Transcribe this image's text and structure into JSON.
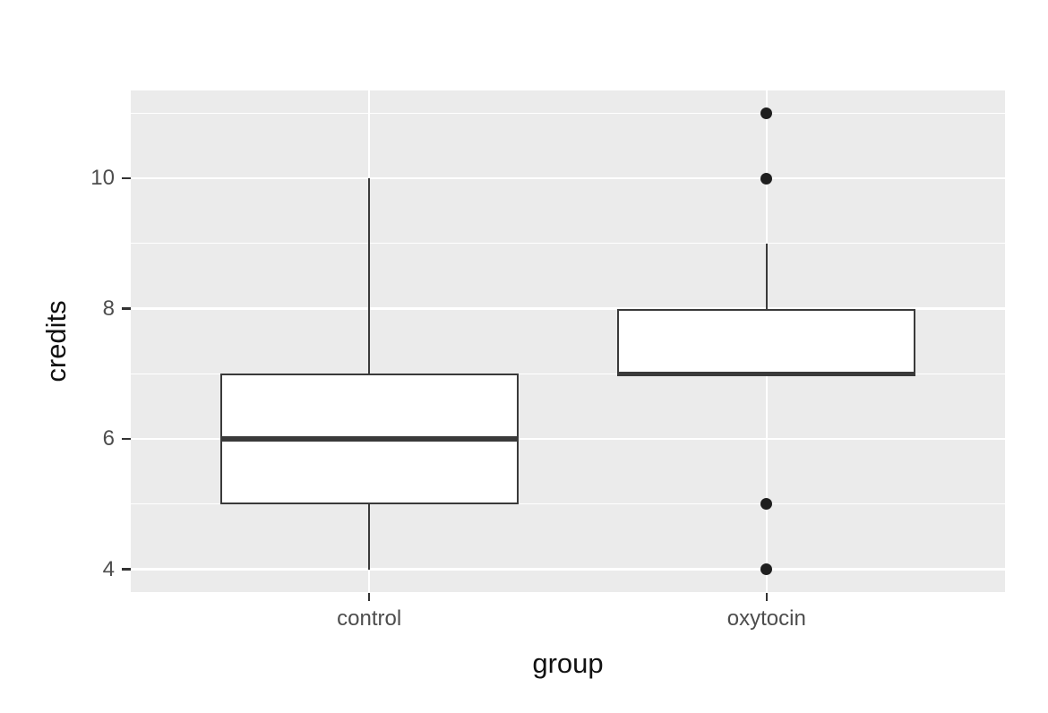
{
  "chart_data": {
    "type": "boxplot",
    "title": "",
    "xlabel": "group",
    "ylabel": "credits",
    "categories": [
      "control",
      "oxytocin"
    ],
    "y_major_ticks": [
      4,
      6,
      8,
      10
    ],
    "y_minor_gridlines": [
      5,
      7,
      9,
      11
    ],
    "ylim": [
      3.65,
      11.35
    ],
    "grid": "on",
    "legend": "none",
    "series": [
      {
        "name": "control",
        "whisker_low": 4,
        "q1": 5,
        "median": 6,
        "q3": 7,
        "whisker_high": 10,
        "outliers": []
      },
      {
        "name": "oxytocin",
        "whisker_low": 7,
        "q1": 7,
        "median": 7,
        "q3": 8,
        "whisker_high": 9,
        "outliers": [
          11,
          10,
          5,
          4
        ]
      }
    ],
    "colors": {
      "panel_bg": "#ebebeb",
      "grid": "#ffffff",
      "box_border": "#3a3a3a",
      "box_fill": "#ffffff",
      "median": "#3a3a3a",
      "outlier": "#1f1f1f",
      "tick_mark": "#333333",
      "tick_text": "#4d4d4d",
      "axis_title_text": "#111111"
    }
  }
}
